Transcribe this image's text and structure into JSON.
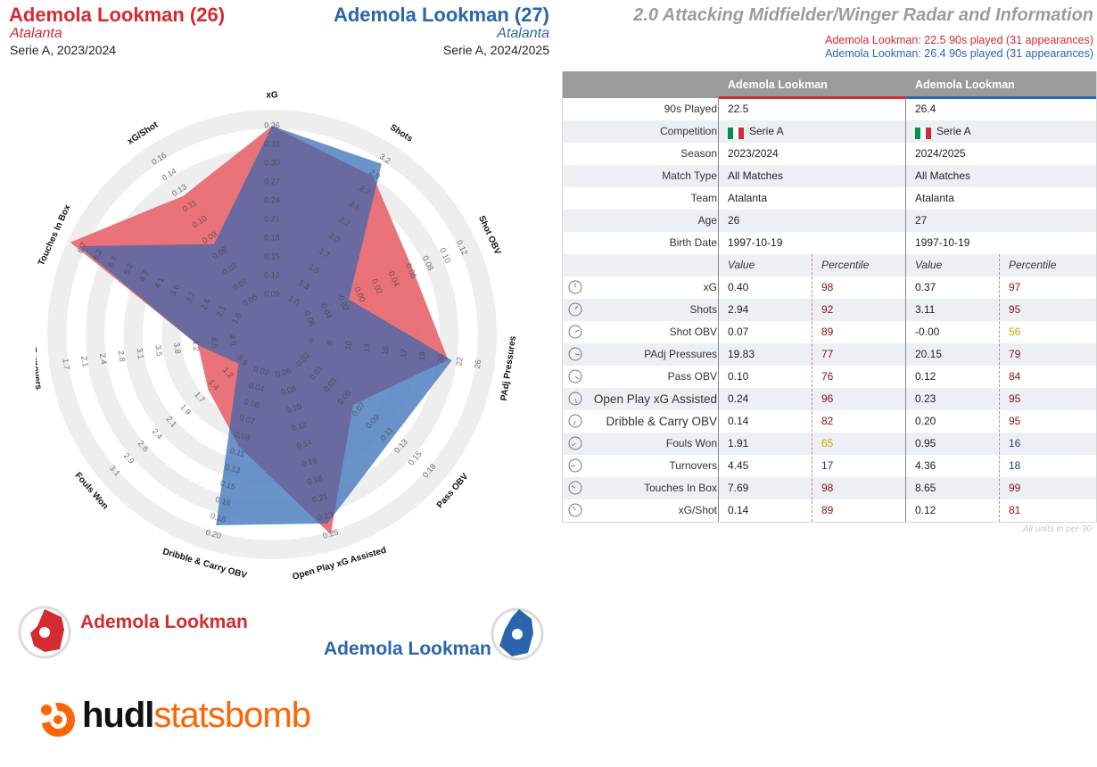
{
  "header": {
    "p1_name": "Ademola Lookman (26)",
    "p1_team": "Atalanta",
    "p1_comp": "Serie A, 2023/2024",
    "p2_name": "Ademola Lookman (27)",
    "p2_team": "Atalanta",
    "p2_comp": "Serie A, 2024/2025",
    "title": "2.0 Attacking Midfielder/Winger Radar and Information",
    "info1": "Ademola Lookman: 22.5 90s played (31 appearances)",
    "info2": "Ademola Lookman: 26.4 90s played (31 appearances)"
  },
  "colors": {
    "p1": "#d42a32",
    "p2": "#2a64ad",
    "p1_fill": "#e8646b",
    "p2_fill": "#4f80c0",
    "overlap": "#6a6aa0",
    "ring": "#eeeeee"
  },
  "legend": {
    "p1": "Ademola Lookman",
    "p2": "Ademola Lookman"
  },
  "logo": {
    "hudl": "hudl",
    "statsbomb": "statsbomb",
    "icon": "statsbomb-logo-icon"
  },
  "chart_data": {
    "type": "radar",
    "axes": [
      {
        "label": "xG",
        "ticks": [
          "0.09",
          "0.12",
          "0.15",
          "0.18",
          "0.21",
          "0.24",
          "0.27",
          "0.30",
          "0.33",
          "0.36"
        ]
      },
      {
        "label": "Shots",
        "ticks": [
          "1.0",
          "1.3",
          "1.5",
          "1.7",
          "2.0",
          "2.2",
          "2.5",
          "2.7",
          "2.9",
          "3.2"
        ]
      },
      {
        "label": "Shot OBV",
        "ticks": [
          "-0.06",
          "-0.04",
          "-0.02",
          "0.00",
          "0.02",
          "0.04",
          "0.06",
          "0.08",
          "0.10",
          "0.12"
        ]
      },
      {
        "label": "PAdj Pressures",
        "ticks": [
          "6",
          "8",
          "10",
          "13",
          "15",
          "17",
          "19",
          "20",
          "22",
          "26"
        ]
      },
      {
        "label": "Pass OBV",
        "ticks": [
          "-0.02",
          "0.01",
          "0.03",
          "0.05",
          "0.07",
          "0.09",
          "0.11",
          "0.13",
          "0.15",
          "0.18"
        ]
      },
      {
        "label": "Open Play xG Assisted",
        "ticks": [
          "0.06",
          "0.08",
          "0.10",
          "0.12",
          "0.14",
          "0.16",
          "0.18",
          "0.21",
          "0.23",
          "0.25"
        ]
      },
      {
        "label": "Dribble & Carry OBV",
        "ticks": [
          "0.02",
          "0.04",
          "0.06",
          "0.07",
          "0.09",
          "0.11",
          "0.13",
          "0.15",
          "0.16",
          "0.18",
          "0.20"
        ]
      },
      {
        "label": "Fouls Won",
        "ticks": [
          "0.9",
          "1.2",
          "1.4",
          "1.7",
          "1.9",
          "2.1",
          "2.4",
          "2.6",
          "2.9",
          "3.1"
        ]
      },
      {
        "label": "Turnovers",
        "ticks": [
          "4.9",
          "4.5",
          "4.2",
          "3.8",
          "3.5",
          "3.1",
          "2.8",
          "2.4",
          "2.1",
          "1.7"
        ]
      },
      {
        "label": "Touches In Box",
        "ticks": [
          "1.6",
          "2.1",
          "2.6",
          "3.1",
          "3.6",
          "4.1",
          "4.7",
          "5.2",
          "5.7",
          "6.2",
          "6.7"
        ]
      },
      {
        "label": "xG/Shot",
        "ticks": [
          "0.06",
          "0.07",
          "0.07",
          "0.08",
          "0.09",
          "0.10",
          "0.11",
          "0.13",
          "0.14",
          "0.16"
        ]
      }
    ],
    "series": [
      {
        "name": "Ademola Lookman (26)",
        "values": [
          0.98,
          0.87,
          0.7,
          0.82,
          0.45,
          0.98,
          0.5,
          0.33,
          0.28,
          1.05,
          0.75
        ]
      },
      {
        "name": "Ademola Lookman (27)",
        "values": [
          0.98,
          0.95,
          0.33,
          0.84,
          0.72,
          0.92,
          0.93,
          0.12,
          0.28,
          1.0,
          0.45
        ]
      }
    ]
  },
  "table": {
    "col1": "Ademola Lookman",
    "col2": "Ademola Lookman",
    "info_rows": [
      {
        "label": "90s Played",
        "v1": "22.5",
        "v2": "26.4"
      },
      {
        "label": "Competition",
        "v1": "Serie A",
        "v2": "Serie A",
        "flag": true
      },
      {
        "label": "Season",
        "v1": "2023/2024",
        "v2": "2024/2025"
      },
      {
        "label": "Match Type",
        "v1": "All Matches",
        "v2": "All Matches"
      },
      {
        "label": "Team",
        "v1": "Atalanta",
        "v2": "Atalanta"
      },
      {
        "label": "Age",
        "v1": "26",
        "v2": "27"
      },
      {
        "label": "Birth Date",
        "v1": "1997-10-19",
        "v2": "1997-10-19"
      }
    ],
    "value_header": "Value",
    "percentile_header": "Percentile",
    "stat_rows": [
      {
        "label": "xG",
        "v1": "0.40",
        "p1": "98",
        "v2": "0.37",
        "p2": "97"
      },
      {
        "label": "Shots",
        "v1": "2.94",
        "p1": "92",
        "v2": "3.11",
        "p2": "95"
      },
      {
        "label": "Shot OBV",
        "v1": "0.07",
        "p1": "89",
        "v2": "-0.00",
        "p2": "56"
      },
      {
        "label": "PAdj Pressures",
        "v1": "19.83",
        "p1": "77",
        "v2": "20.15",
        "p2": "79"
      },
      {
        "label": "Pass OBV",
        "v1": "0.10",
        "p1": "76",
        "v2": "0.12",
        "p2": "84"
      },
      {
        "label": "Open Play xG Assisted",
        "v1": "0.24",
        "p1": "96",
        "v2": "0.23",
        "p2": "95"
      },
      {
        "label": "Dribble & Carry OBV",
        "v1": "0.14",
        "p1": "82",
        "v2": "0.20",
        "p2": "95"
      },
      {
        "label": "Fouls Won",
        "v1": "1.91",
        "p1": "65",
        "v2": "0.95",
        "p2": "16"
      },
      {
        "label": "Turnovers",
        "v1": "4.45",
        "p1": "17",
        "v2": "4.36",
        "p2": "18"
      },
      {
        "label": "Touches In Box",
        "v1": "7.69",
        "p1": "98",
        "v2": "8.65",
        "p2": "99"
      },
      {
        "label": "xG/Shot",
        "v1": "0.14",
        "p1": "89",
        "v2": "0.12",
        "p2": "81"
      }
    ],
    "footnote": "All units in per-90"
  }
}
